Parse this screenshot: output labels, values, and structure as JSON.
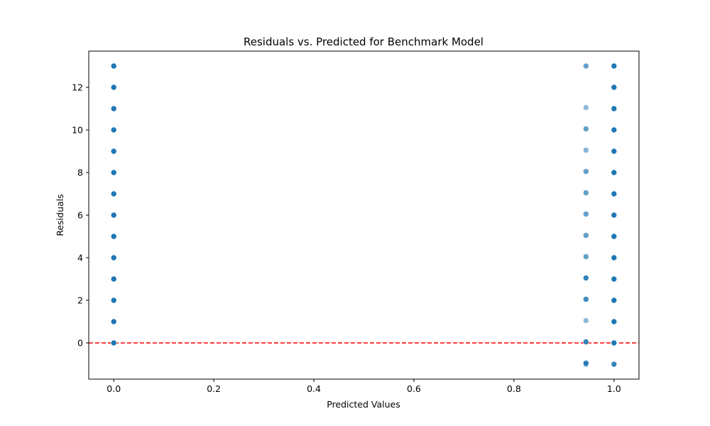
{
  "chart_data": {
    "type": "scatter",
    "title": "Residuals vs. Predicted for Benchmark Model",
    "xlabel": "Predicted Values",
    "ylabel": "Residuals",
    "xlim": [
      -0.05,
      1.05
    ],
    "ylim": [
      -1.7,
      13.7
    ],
    "xticks": [
      0.0,
      0.2,
      0.4,
      0.6,
      0.8,
      1.0
    ],
    "xtick_labels": [
      "0.0",
      "0.2",
      "0.4",
      "0.6",
      "0.8",
      "1.0"
    ],
    "yticks": [
      0,
      2,
      4,
      6,
      8,
      10,
      12
    ],
    "ytick_labels": [
      "0",
      "2",
      "4",
      "6",
      "8",
      "10",
      "12"
    ],
    "grid": false,
    "marker_color": "#1f77b4",
    "reference_line": {
      "y": 0,
      "color": "#ff0000",
      "style": "dashed"
    },
    "series": [
      {
        "x": [
          0,
          0,
          0,
          0,
          0,
          0,
          0,
          0,
          0,
          0,
          0,
          0,
          0,
          0
        ],
        "y": [
          0,
          1,
          2,
          3,
          4,
          5,
          6,
          7,
          8,
          9,
          10,
          11,
          12,
          13
        ],
        "opacity": [
          1,
          1,
          1,
          1,
          1,
          1,
          1,
          1,
          1,
          1,
          1,
          1,
          1,
          1
        ]
      },
      {
        "x": [
          0.944,
          0.944,
          0.944,
          0.944,
          0.944,
          0.944,
          0.944,
          0.944,
          0.944,
          0.944,
          0.944,
          0.944,
          0.944,
          0.944,
          0.944
        ],
        "y": [
          -1,
          0.05,
          1.05,
          2.05,
          3.05,
          4.05,
          5.05,
          6.05,
          7.05,
          8.05,
          9.05,
          10.05,
          11.05,
          13,
          -0.95
        ],
        "opacity": [
          0.9,
          0.9,
          0.5,
          0.85,
          0.9,
          0.7,
          0.7,
          0.7,
          0.7,
          0.7,
          0.55,
          0.7,
          0.5,
          0.7,
          0.9
        ]
      },
      {
        "x": [
          1,
          1,
          1,
          1,
          1,
          1,
          1,
          1,
          1,
          1,
          1,
          1,
          1,
          1,
          1
        ],
        "y": [
          -1,
          0,
          1,
          2,
          3,
          4,
          5,
          6,
          7,
          8,
          9,
          10,
          11,
          12,
          13
        ],
        "opacity": [
          0.9,
          1,
          1,
          1,
          1,
          1,
          1,
          1,
          1,
          1,
          1,
          1,
          1,
          1,
          1
        ]
      }
    ]
  }
}
